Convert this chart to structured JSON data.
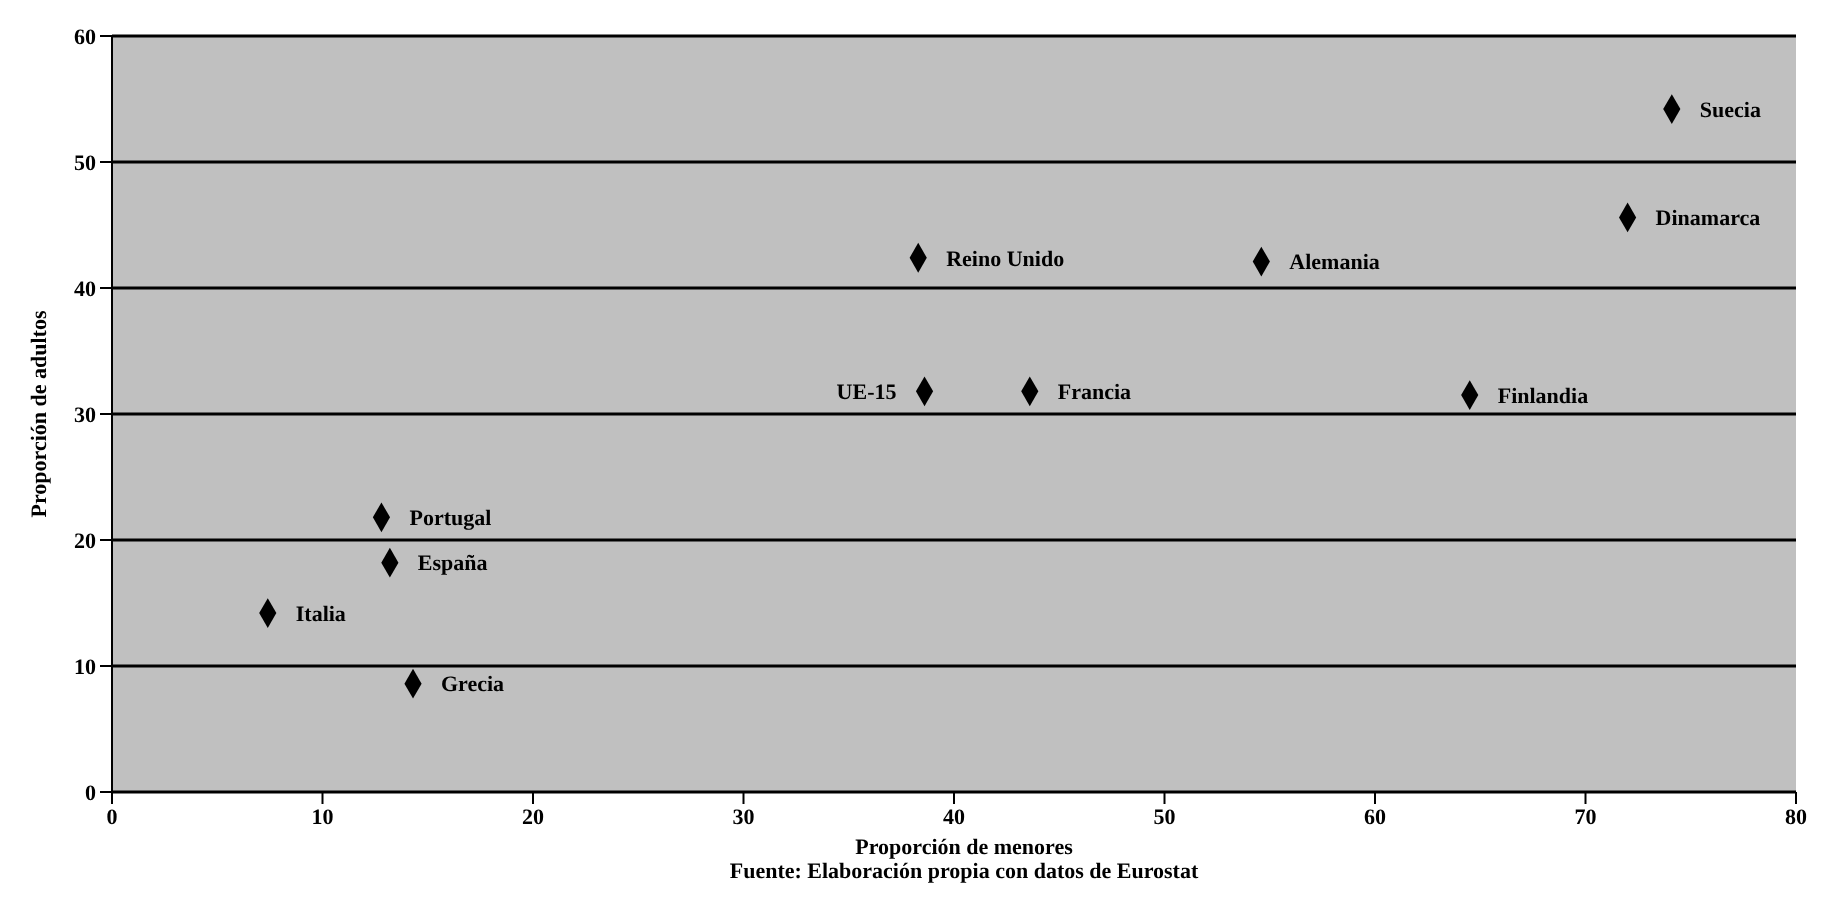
{
  "chart_data": {
    "type": "scatter",
    "xlabel": "Proporción de menores",
    "ylabel": "Proporción de adultos",
    "x": [
      74.1,
      72.0,
      38.3,
      54.6,
      38.6,
      43.6,
      64.5,
      12.8,
      13.2,
      7.4,
      14.3
    ],
    "series": [
      {
        "color": "#000000",
        "values": [
          54.2,
          45.6,
          42.4,
          42.1,
          31.8,
          31.8,
          31.5,
          21.8,
          18.2,
          14.2,
          8.6
        ]
      }
    ],
    "annotations": [
      {
        "text": "Suecia",
        "x": 74.1,
        "y": 54.2
      },
      {
        "text": "Dinamarca",
        "x": 72.0,
        "y": 45.6
      },
      {
        "text": "Reino Unido",
        "x": 38.3,
        "y": 42.4
      },
      {
        "text": "Alemania",
        "x": 54.6,
        "y": 42.1
      },
      {
        "text": "UE-15",
        "x": 38.6,
        "y": 31.8
      },
      {
        "text": "Francia",
        "x": 43.6,
        "y": 31.8
      },
      {
        "text": "Finlandia",
        "x": 64.5,
        "y": 31.5
      },
      {
        "text": "Portugal",
        "x": 12.8,
        "y": 21.8
      },
      {
        "text": "España",
        "x": 13.2,
        "y": 18.2
      },
      {
        "text": "Italia",
        "x": 7.4,
        "y": 14.2
      },
      {
        "text": "Grecia",
        "x": 14.3,
        "y": 8.6
      },
      "Fuente: Elaboración propia con datos de Eurostat"
    ],
    "xlim": [
      0,
      80
    ],
    "xticks": [
      0,
      10,
      20,
      30,
      40,
      50,
      60,
      70,
      80
    ],
    "ylim": [
      0,
      60
    ],
    "yticks": [
      0,
      10,
      20,
      30,
      40,
      50,
      60
    ],
    "grid": "y",
    "marker": "diamond",
    "legend": false
  }
}
